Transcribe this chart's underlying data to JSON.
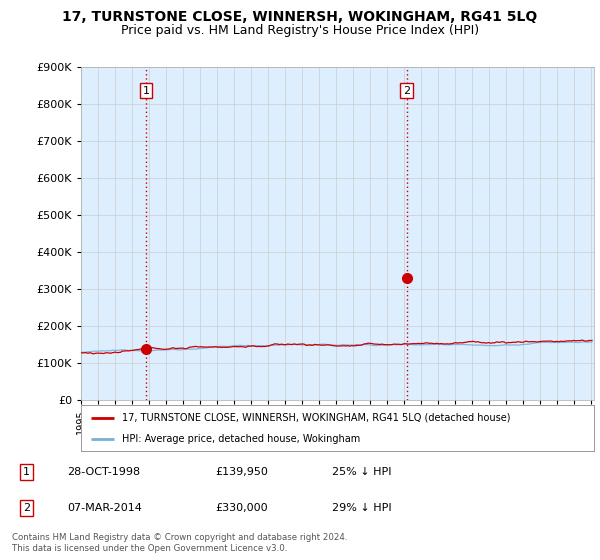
{
  "title": "17, TURNSTONE CLOSE, WINNERSH, WOKINGHAM, RG41 5LQ",
  "subtitle": "Price paid vs. HM Land Registry's House Price Index (HPI)",
  "property_label": "17, TURNSTONE CLOSE, WINNERSH, WOKINGHAM, RG41 5LQ (detached house)",
  "hpi_label": "HPI: Average price, detached house, Wokingham",
  "footer": "Contains HM Land Registry data © Crown copyright and database right 2024.\nThis data is licensed under the Open Government Licence v3.0.",
  "transaction1": {
    "date": "28-OCT-1998",
    "price": "£139,950",
    "change": "25% ↓ HPI",
    "x": 1998.83
  },
  "transaction2": {
    "date": "07-MAR-2014",
    "price": "£330,000",
    "change": "29% ↓ HPI",
    "x": 2014.18
  },
  "t1_y": 139950,
  "t2_y": 330000,
  "ylim": [
    0,
    900000
  ],
  "xlim_start": 1995.3,
  "xlim_end": 2025.2,
  "property_color": "#cc0000",
  "hpi_color": "#7ab0d4",
  "vline_color": "#cc0000",
  "grid_color": "#cccccc",
  "background_color": "#ffffff",
  "chart_bg_color": "#ddeeff",
  "title_fontsize": 10,
  "subtitle_fontsize": 9
}
